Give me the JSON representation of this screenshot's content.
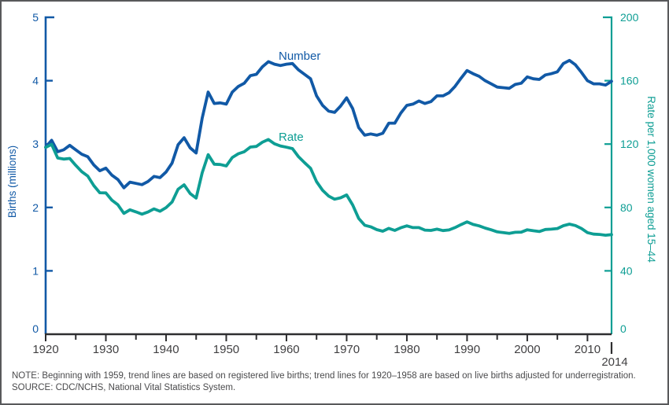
{
  "figure": {
    "series_label_number": "Number",
    "series_label_rate": "Rate",
    "left_axis_title": "Births (millions)",
    "right_axis_title": "Rate per 1,000 women aged 15–44",
    "end_year_label": "2014",
    "note": "NOTE: Beginning with 1959, trend lines are based on registered live births; trend lines for 1920–1958 are based on live births adjusted for underregistration.",
    "source": "SOURCE: CDC/NCHS, National Vital Statistics System."
  },
  "colors": {
    "number_blue": "#1159a6",
    "rate_teal": "#0e9e94",
    "axis_black": "#2e2e30",
    "x_label_gray": "#414042",
    "note_gray": "#4a4a4c"
  },
  "chart_data": {
    "type": "line",
    "title": "",
    "xlabel": "",
    "x_range": [
      1920,
      2014
    ],
    "x": [
      1920,
      1921,
      1922,
      1923,
      1924,
      1925,
      1926,
      1927,
      1928,
      1929,
      1930,
      1931,
      1932,
      1933,
      1934,
      1935,
      1936,
      1937,
      1938,
      1939,
      1940,
      1941,
      1942,
      1943,
      1944,
      1945,
      1946,
      1947,
      1948,
      1949,
      1950,
      1951,
      1952,
      1953,
      1954,
      1955,
      1956,
      1957,
      1958,
      1959,
      1960,
      1961,
      1962,
      1963,
      1964,
      1965,
      1966,
      1967,
      1968,
      1969,
      1970,
      1971,
      1972,
      1973,
      1974,
      1975,
      1976,
      1977,
      1978,
      1979,
      1980,
      1981,
      1982,
      1983,
      1984,
      1985,
      1986,
      1987,
      1988,
      1989,
      1990,
      1991,
      1992,
      1993,
      1994,
      1995,
      1996,
      1997,
      1998,
      1999,
      2000,
      2001,
      2002,
      2003,
      2004,
      2005,
      2006,
      2007,
      2008,
      2009,
      2010,
      2011,
      2012,
      2013,
      2014
    ],
    "series": [
      {
        "name": "Number",
        "axis": "left",
        "units": "millions of births",
        "color": "#1159a6",
        "values": [
          2.95,
          3.06,
          2.88,
          2.91,
          2.98,
          2.91,
          2.84,
          2.8,
          2.67,
          2.58,
          2.62,
          2.51,
          2.44,
          2.31,
          2.4,
          2.38,
          2.36,
          2.41,
          2.49,
          2.47,
          2.56,
          2.7,
          2.99,
          3.1,
          2.94,
          2.86,
          3.41,
          3.82,
          3.64,
          3.65,
          3.63,
          3.82,
          3.91,
          3.96,
          4.08,
          4.1,
          4.22,
          4.3,
          4.26,
          4.24,
          4.26,
          4.27,
          4.17,
          4.1,
          4.03,
          3.76,
          3.61,
          3.52,
          3.5,
          3.6,
          3.73,
          3.56,
          3.26,
          3.14,
          3.16,
          3.14,
          3.17,
          3.33,
          3.33,
          3.49,
          3.61,
          3.63,
          3.68,
          3.64,
          3.67,
          3.76,
          3.76,
          3.81,
          3.91,
          4.04,
          4.16,
          4.11,
          4.07,
          4.0,
          3.95,
          3.9,
          3.89,
          3.88,
          3.94,
          3.96,
          4.06,
          4.03,
          4.02,
          4.09,
          4.11,
          4.14,
          4.27,
          4.32,
          4.25,
          4.13,
          4.0,
          3.95,
          3.95,
          3.93,
          3.99
        ]
      },
      {
        "name": "Rate",
        "axis": "right",
        "units": "births per 1,000 women aged 15–44",
        "color": "#0e9e94",
        "values": [
          117.9,
          119.8,
          111.2,
          110.5,
          110.9,
          106.6,
          102.6,
          99.8,
          93.8,
          89.3,
          89.2,
          84.6,
          81.7,
          76.3,
          78.5,
          77.2,
          75.8,
          77.1,
          79.1,
          77.6,
          79.9,
          83.4,
          91.5,
          94.3,
          88.8,
          85.9,
          101.9,
          113.3,
          107.3,
          107.1,
          106.2,
          111.5,
          113.9,
          115.2,
          118.1,
          118.5,
          121.2,
          122.9,
          120.2,
          118.8,
          118.0,
          117.1,
          112.0,
          108.3,
          104.7,
          96.3,
          90.8,
          87.2,
          85.2,
          86.1,
          87.9,
          81.6,
          73.1,
          68.8,
          67.8,
          66.0,
          65.0,
          66.8,
          65.5,
          67.2,
          68.4,
          67.3,
          67.3,
          65.7,
          65.5,
          66.3,
          65.4,
          65.8,
          67.3,
          69.2,
          70.9,
          69.3,
          68.4,
          67.0,
          65.9,
          64.6,
          64.1,
          63.6,
          64.3,
          64.4,
          65.9,
          65.3,
          64.8,
          66.1,
          66.3,
          66.7,
          68.5,
          69.5,
          68.6,
          66.7,
          64.1,
          63.2,
          63.0,
          62.5,
          62.9
        ]
      }
    ],
    "left_axis": {
      "label": "Births (millions)",
      "min": 0,
      "max": 5,
      "ticks": [
        0,
        1,
        2,
        3,
        4,
        5
      ]
    },
    "right_axis": {
      "label": "Rate per 1,000 women aged 15–44",
      "min": 0,
      "max": 200,
      "ticks": [
        0,
        40,
        80,
        120,
        160,
        200
      ]
    },
    "x_axis": {
      "major_ticks": [
        1920,
        1930,
        1940,
        1950,
        1960,
        1970,
        1980,
        1990,
        2000,
        2010
      ],
      "minor_ticks": [
        1925,
        1935,
        1945,
        1955,
        1965,
        1975,
        1985,
        1995,
        2005
      ],
      "end_tick": 2014,
      "end_tick_label": "2014"
    },
    "legend_position": "inline-labels",
    "grid": false
  }
}
